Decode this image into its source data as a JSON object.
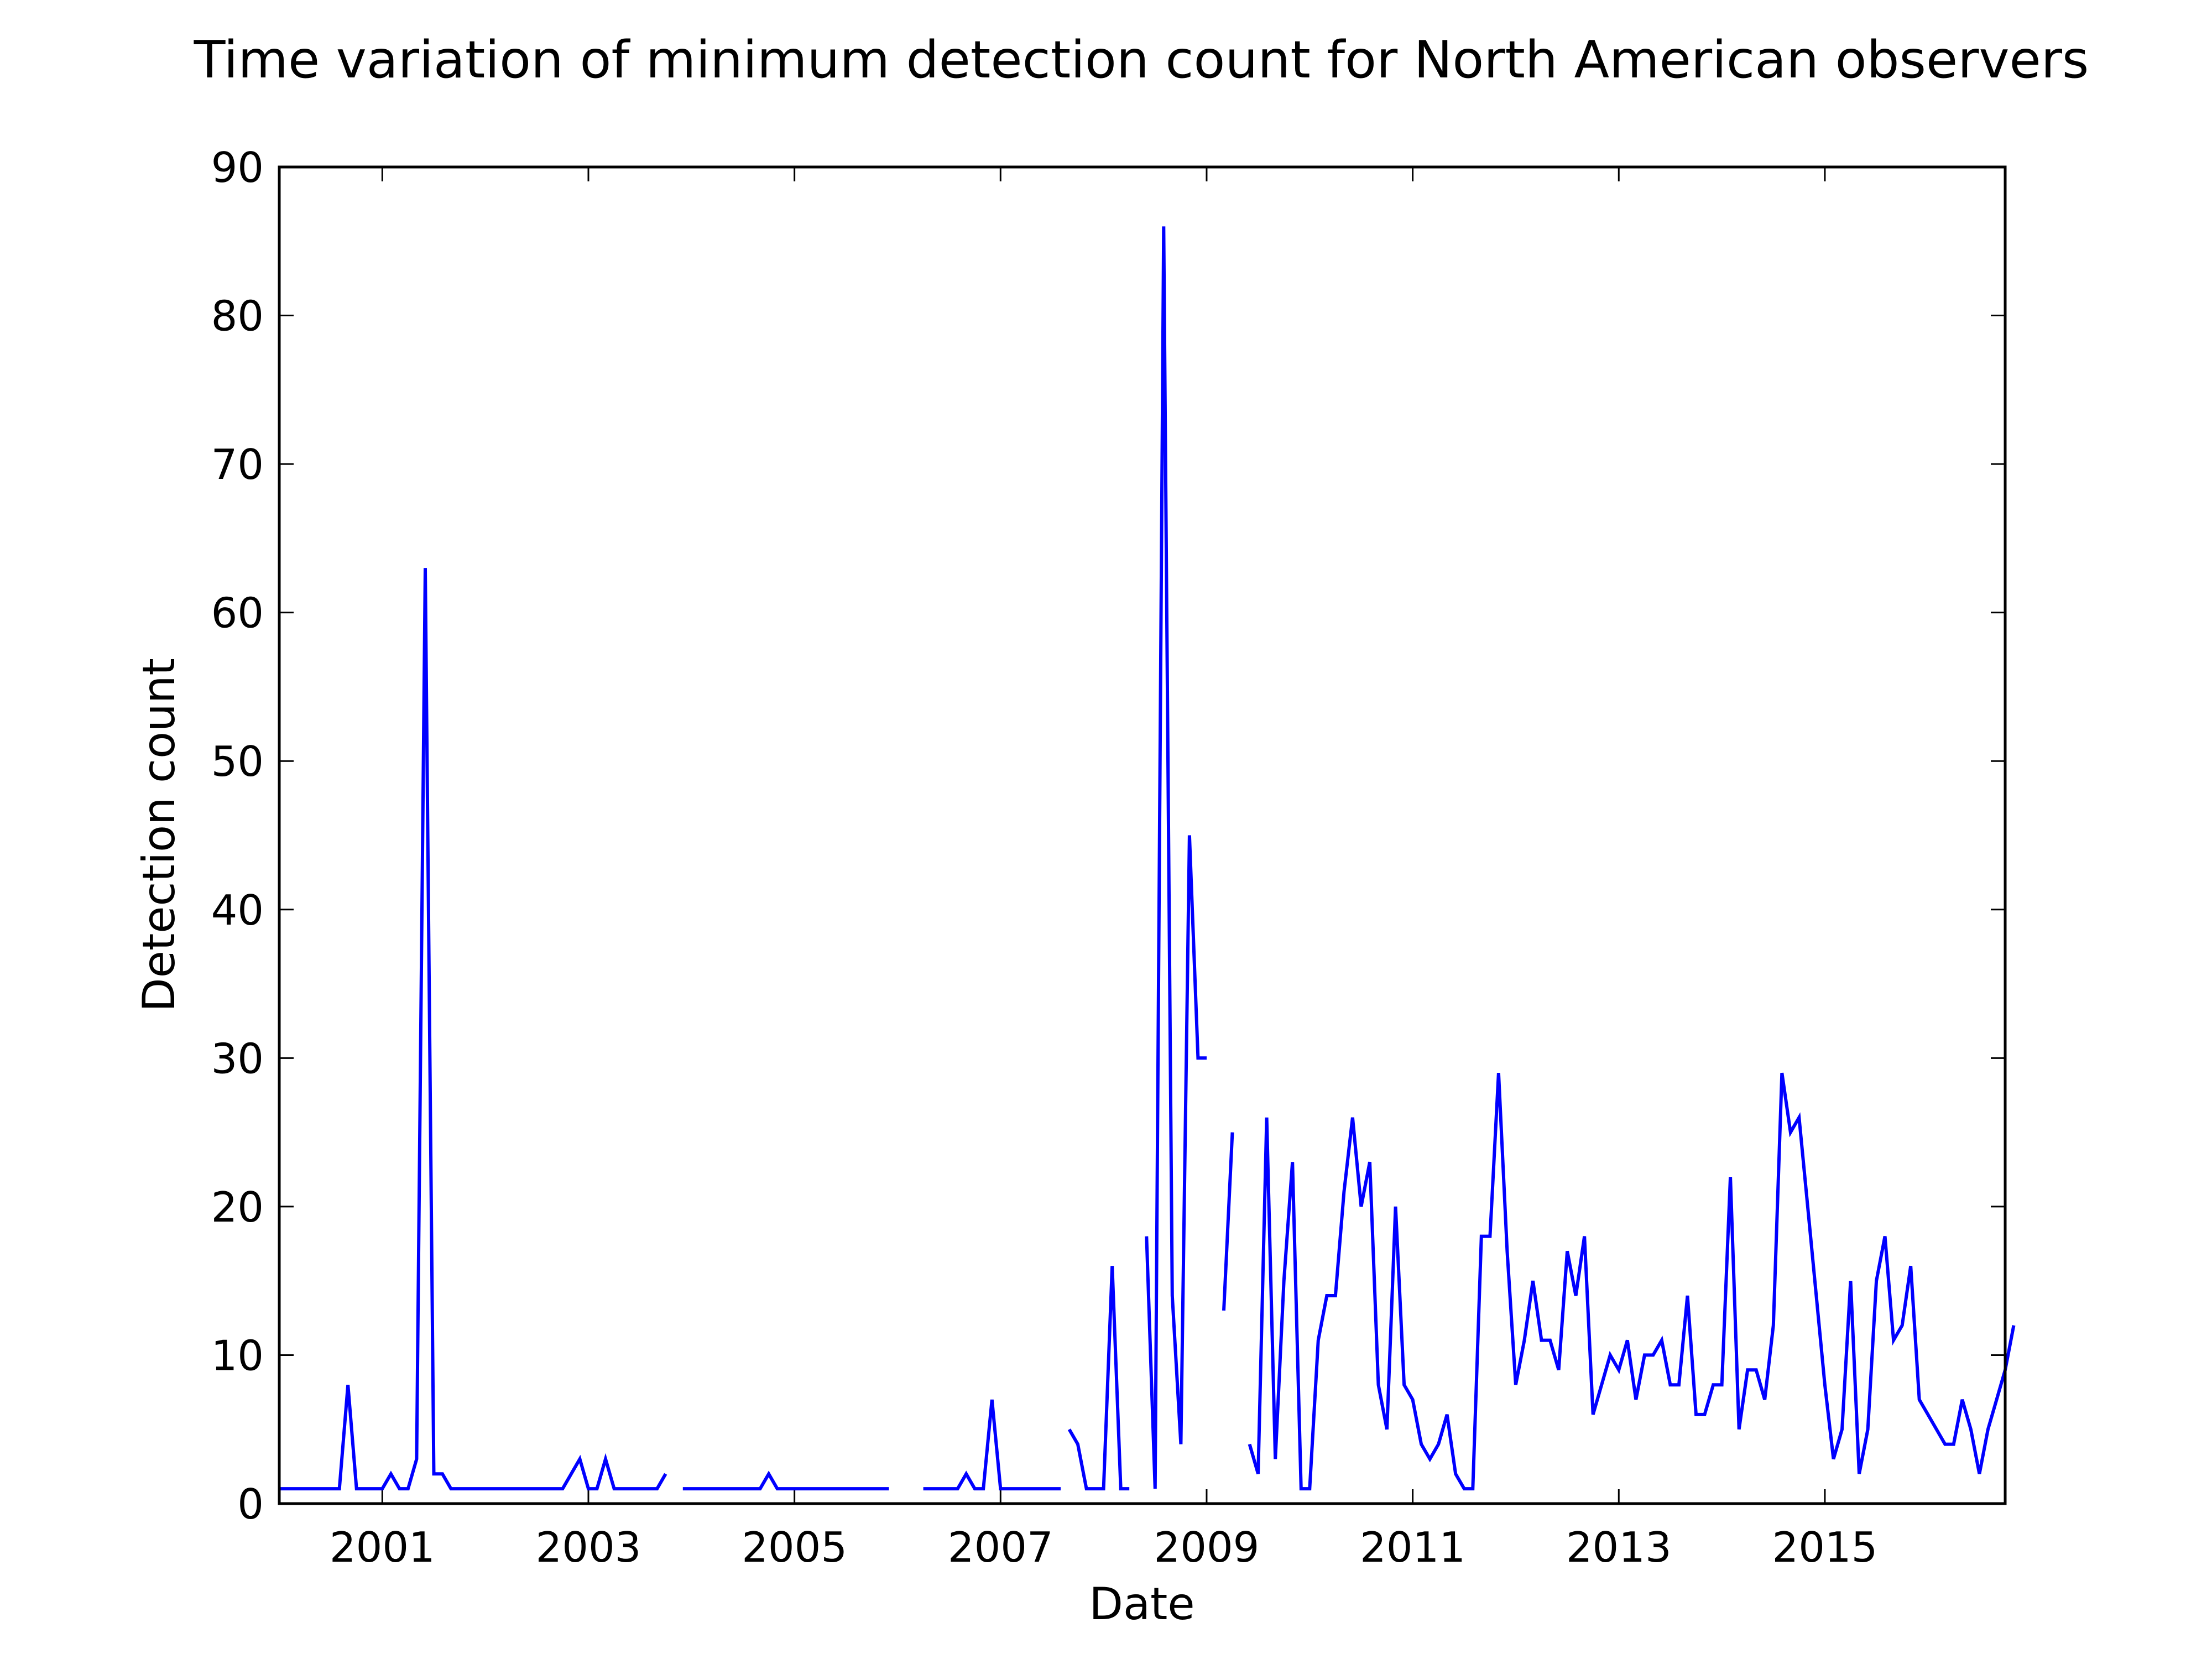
{
  "chart_data": {
    "type": "line",
    "title": "Time variation of minimum detection count for North American observers",
    "xlabel": "Date",
    "ylabel": "Detection count",
    "xlim": [
      "2000-01",
      "2016-10"
    ],
    "ylim": [
      0,
      90
    ],
    "x_ticks": [
      "2001",
      "2003",
      "2005",
      "2007",
      "2009",
      "2011",
      "2013",
      "2015"
    ],
    "y_ticks": [
      "0",
      "10",
      "20",
      "30",
      "40",
      "50",
      "60",
      "70",
      "80",
      "90"
    ],
    "grid": false,
    "legend": "none",
    "line_color": "#0000ff",
    "series": [
      {
        "segments": [
          [
            [
              "2000-01",
              1
            ],
            [
              "2000-02",
              1
            ],
            [
              "2000-03",
              1
            ],
            [
              "2000-04",
              1
            ],
            [
              "2000-05",
              1
            ],
            [
              "2000-06",
              1
            ],
            [
              "2000-07",
              1
            ],
            [
              "2000-08",
              1
            ],
            [
              "2000-09",
              8
            ],
            [
              "2000-10",
              1
            ],
            [
              "2000-11",
              1
            ],
            [
              "2000-12",
              1
            ],
            [
              "2001-01",
              1
            ],
            [
              "2001-02",
              2
            ],
            [
              "2001-03",
              1
            ],
            [
              "2001-04",
              1
            ],
            [
              "2001-05",
              3
            ],
            [
              "2001-06",
              63
            ],
            [
              "2001-07",
              2
            ],
            [
              "2001-08",
              2
            ],
            [
              "2001-09",
              1
            ],
            [
              "2001-10",
              1
            ],
            [
              "2001-11",
              1
            ],
            [
              "2001-12",
              1
            ],
            [
              "2002-01",
              1
            ],
            [
              "2002-02",
              1
            ],
            [
              "2002-03",
              1
            ],
            [
              "2002-04",
              1
            ],
            [
              "2002-05",
              1
            ],
            [
              "2002-06",
              1
            ],
            [
              "2002-07",
              1
            ],
            [
              "2002-08",
              1
            ],
            [
              "2002-09",
              1
            ],
            [
              "2002-10",
              1
            ],
            [
              "2002-11",
              2
            ],
            [
              "2002-12",
              3
            ],
            [
              "2003-01",
              1
            ],
            [
              "2003-02",
              1
            ],
            [
              "2003-03",
              3
            ],
            [
              "2003-04",
              1
            ],
            [
              "2003-05",
              1
            ],
            [
              "2003-06",
              1
            ],
            [
              "2003-07",
              1
            ],
            [
              "2003-08",
              1
            ],
            [
              "2003-09",
              1
            ],
            [
              "2003-10",
              2
            ]
          ],
          [
            [
              "2003-12",
              1
            ],
            [
              "2004-01",
              1
            ],
            [
              "2004-02",
              1
            ],
            [
              "2004-03",
              1
            ],
            [
              "2004-04",
              1
            ],
            [
              "2004-05",
              1
            ],
            [
              "2004-06",
              1
            ],
            [
              "2004-07",
              1
            ],
            [
              "2004-08",
              1
            ],
            [
              "2004-09",
              1
            ],
            [
              "2004-10",
              2
            ],
            [
              "2004-11",
              1
            ],
            [
              "2004-12",
              1
            ],
            [
              "2005-01",
              1
            ],
            [
              "2005-02",
              1
            ],
            [
              "2005-03",
              1
            ],
            [
              "2005-04",
              1
            ],
            [
              "2005-05",
              1
            ],
            [
              "2005-06",
              1
            ],
            [
              "2005-07",
              1
            ],
            [
              "2005-08",
              1
            ],
            [
              "2005-09",
              1
            ],
            [
              "2005-10",
              1
            ],
            [
              "2005-11",
              1
            ],
            [
              "2005-12",
              1
            ]
          ],
          [
            [
              "2006-04",
              1
            ],
            [
              "2006-05",
              1
            ],
            [
              "2006-06",
              1
            ],
            [
              "2006-07",
              1
            ],
            [
              "2006-08",
              1
            ],
            [
              "2006-09",
              2
            ],
            [
              "2006-10",
              1
            ],
            [
              "2006-11",
              1
            ],
            [
              "2006-12",
              7
            ],
            [
              "2007-01",
              1
            ],
            [
              "2007-02",
              1
            ],
            [
              "2007-03",
              1
            ],
            [
              "2007-04",
              1
            ],
            [
              "2007-05",
              1
            ],
            [
              "2007-06",
              1
            ],
            [
              "2007-07",
              1
            ],
            [
              "2007-08",
              1
            ]
          ],
          [
            [
              "2007-09",
              5
            ],
            [
              "2007-10",
              4
            ],
            [
              "2007-11",
              1
            ],
            [
              "2007-12",
              1
            ],
            [
              "2008-01",
              1
            ],
            [
              "2008-02",
              16
            ],
            [
              "2008-03",
              1
            ],
            [
              "2008-04",
              1
            ]
          ],
          [
            [
              "2008-06",
              18
            ],
            [
              "2008-07",
              1
            ],
            [
              "2008-08",
              86
            ],
            [
              "2008-09",
              14
            ],
            [
              "2008-10",
              4
            ],
            [
              "2008-11",
              45
            ],
            [
              "2008-12",
              30
            ],
            [
              "2009-01",
              30
            ]
          ],
          [
            [
              "2009-03",
              13
            ],
            [
              "2009-04",
              25
            ]
          ],
          [
            [
              "2009-06",
              4
            ],
            [
              "2009-07",
              2
            ],
            [
              "2009-08",
              26
            ],
            [
              "2009-09",
              3
            ],
            [
              "2009-10",
              15
            ],
            [
              "2009-11",
              23
            ],
            [
              "2009-12",
              1
            ],
            [
              "2010-01",
              1
            ],
            [
              "2010-02",
              11
            ],
            [
              "2010-03",
              14
            ],
            [
              "2010-04",
              14
            ],
            [
              "2010-05",
              21
            ],
            [
              "2010-06",
              26
            ],
            [
              "2010-07",
              20
            ],
            [
              "2010-08",
              23
            ],
            [
              "2010-09",
              8
            ],
            [
              "2010-10",
              5
            ],
            [
              "2010-11",
              20
            ],
            [
              "2010-12",
              8
            ],
            [
              "2011-01",
              7
            ],
            [
              "2011-02",
              4
            ],
            [
              "2011-03",
              3
            ],
            [
              "2011-04",
              4
            ],
            [
              "2011-05",
              6
            ],
            [
              "2011-06",
              2
            ],
            [
              "2011-07",
              1
            ],
            [
              "2011-08",
              1
            ],
            [
              "2011-09",
              18
            ],
            [
              "2011-10",
              18
            ],
            [
              "2011-11",
              29
            ],
            [
              "2011-12",
              17
            ],
            [
              "2012-01",
              8
            ],
            [
              "2012-02",
              11
            ],
            [
              "2012-03",
              15
            ],
            [
              "2012-04",
              11
            ],
            [
              "2012-05",
              11
            ],
            [
              "2012-06",
              9
            ],
            [
              "2012-07",
              17
            ],
            [
              "2012-08",
              14
            ],
            [
              "2012-09",
              18
            ],
            [
              "2012-10",
              6
            ],
            [
              "2012-11",
              8
            ],
            [
              "2012-12",
              10
            ],
            [
              "2013-01",
              9
            ],
            [
              "2013-02",
              11
            ],
            [
              "2013-03",
              7
            ],
            [
              "2013-04",
              10
            ],
            [
              "2013-05",
              10
            ],
            [
              "2013-06",
              11
            ],
            [
              "2013-07",
              8
            ],
            [
              "2013-08",
              8
            ],
            [
              "2013-09",
              14
            ],
            [
              "2013-10",
              6
            ],
            [
              "2013-11",
              6
            ],
            [
              "2013-12",
              8
            ],
            [
              "2014-01",
              8
            ],
            [
              "2014-02",
              22
            ],
            [
              "2014-03",
              5
            ],
            [
              "2014-04",
              9
            ],
            [
              "2014-05",
              9
            ],
            [
              "2014-06",
              7
            ],
            [
              "2014-07",
              12
            ],
            [
              "2014-08",
              29
            ],
            [
              "2014-09",
              25
            ],
            [
              "2014-10",
              26
            ],
            [
              "2014-11",
              20
            ],
            [
              "2014-12",
              14
            ],
            [
              "2015-01",
              8
            ],
            [
              "2015-02",
              3
            ],
            [
              "2015-03",
              5
            ],
            [
              "2015-04",
              15
            ],
            [
              "2015-05",
              2
            ],
            [
              "2015-06",
              5
            ],
            [
              "2015-07",
              15
            ],
            [
              "2015-08",
              18
            ],
            [
              "2015-09",
              11
            ],
            [
              "2015-10",
              12
            ],
            [
              "2015-11",
              16
            ],
            [
              "2015-12",
              7
            ],
            [
              "2016-01",
              6
            ],
            [
              "2016-02",
              5
            ],
            [
              "2016-03",
              4
            ],
            [
              "2016-04",
              4
            ],
            [
              "2016-05",
              7
            ],
            [
              "2016-06",
              5
            ],
            [
              "2016-07",
              2
            ],
            [
              "2016-08",
              5
            ],
            [
              "2016-09",
              7
            ],
            [
              "2016-10",
              9
            ],
            [
              "2016-11",
              12
            ]
          ]
        ]
      }
    ]
  }
}
